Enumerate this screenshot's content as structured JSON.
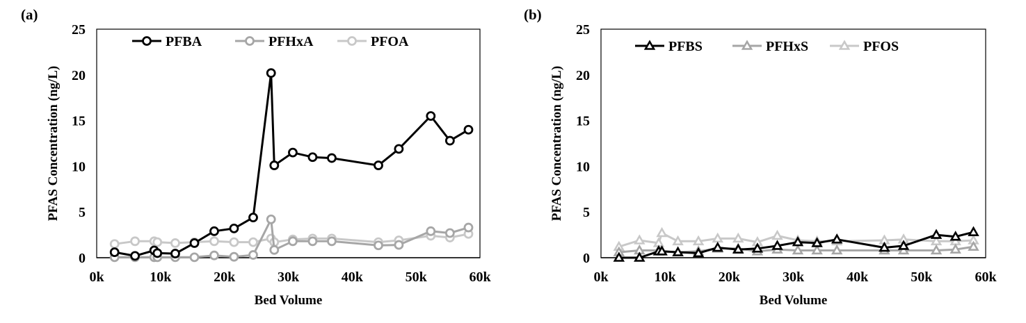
{
  "chart_data": [
    {
      "type": "line",
      "panel_label": "(a)",
      "title": "",
      "xlabel": "Bed Volume",
      "ylabel": "PFAS Concentration (ng/L)",
      "xlim": [
        0,
        60000
      ],
      "ylim": [
        0,
        25
      ],
      "xticks": [
        0,
        10000,
        20000,
        30000,
        40000,
        50000,
        60000
      ],
      "xtick_labels": [
        "0k",
        "10k",
        "20k",
        "30k",
        "40k",
        "50k",
        "60k"
      ],
      "yticks": [
        0,
        5,
        10,
        15,
        20,
        25
      ],
      "ytick_labels": [
        "0",
        "5",
        "10",
        "15",
        "20",
        "25"
      ],
      "grid": false,
      "legend_position": "top",
      "marker": "circle",
      "x": [
        2800,
        6000,
        9000,
        9500,
        12300,
        15300,
        18400,
        21500,
        24500,
        27300,
        27800,
        30700,
        33800,
        36800,
        44100,
        47300,
        52300,
        55300,
        58200
      ],
      "series": [
        {
          "name": "PFBA",
          "color": "#000000",
          "values": [
            0.6,
            0.2,
            0.8,
            0.5,
            0.45,
            1.6,
            2.9,
            3.2,
            4.4,
            20.2,
            10.1,
            11.5,
            11.0,
            10.9,
            10.1,
            11.9,
            15.5,
            12.8,
            14.0
          ]
        },
        {
          "name": "PFHxA",
          "color": "#a6a6a6",
          "values": [
            0.05,
            0.05,
            0.05,
            0.05,
            0.05,
            0.05,
            0.25,
            0.1,
            0.3,
            4.2,
            0.85,
            1.8,
            1.8,
            1.8,
            1.35,
            1.4,
            2.9,
            2.7,
            3.3
          ]
        },
        {
          "name": "PFOA",
          "color": "#c8c8c8",
          "values": [
            1.5,
            1.8,
            1.8,
            1.7,
            1.6,
            1.7,
            1.8,
            1.7,
            1.7,
            2.1,
            1.7,
            2.0,
            2.1,
            2.1,
            1.7,
            1.9,
            2.4,
            2.2,
            2.6
          ]
        }
      ]
    },
    {
      "type": "line",
      "panel_label": "(b)",
      "title": "",
      "xlabel": "Bed Volume",
      "ylabel": "PFAS Concentration (ng/L)",
      "xlim": [
        0,
        60000
      ],
      "ylim": [
        0,
        25
      ],
      "xticks": [
        0,
        10000,
        20000,
        30000,
        40000,
        50000,
        60000
      ],
      "xtick_labels": [
        "0k",
        "10k",
        "20k",
        "30k",
        "40k",
        "50k",
        "60k"
      ],
      "yticks": [
        0,
        5,
        10,
        15,
        20,
        25
      ],
      "ytick_labels": [
        "0",
        "5",
        "10",
        "15",
        "20",
        "25"
      ],
      "grid": false,
      "legend_position": "top",
      "marker": "triangle",
      "x": [
        2800,
        6000,
        9000,
        9500,
        12000,
        15200,
        18200,
        21400,
        24400,
        27500,
        30700,
        33700,
        36800,
        44200,
        47200,
        52300,
        55300,
        58100
      ],
      "series": [
        {
          "name": "PFBS",
          "color": "#000000",
          "values": [
            0.0,
            0.0,
            0.7,
            0.7,
            0.6,
            0.5,
            1.1,
            0.9,
            1.0,
            1.3,
            1.7,
            1.6,
            2.0,
            1.1,
            1.3,
            2.5,
            2.3,
            2.8
          ]
        },
        {
          "name": "PFHxS",
          "color": "#a6a6a6",
          "values": [
            0.6,
            0.8,
            0.8,
            0.7,
            0.6,
            0.7,
            1.0,
            1.0,
            0.7,
            0.9,
            0.8,
            0.8,
            0.8,
            0.8,
            0.8,
            0.8,
            0.9,
            1.2
          ]
        },
        {
          "name": "PFOS",
          "color": "#c8c8c8",
          "values": [
            1.2,
            1.9,
            1.6,
            2.7,
            1.8,
            1.8,
            2.1,
            2.1,
            1.7,
            2.4,
            1.9,
            1.8,
            1.8,
            1.9,
            2.0,
            1.8,
            1.8,
            1.9
          ]
        }
      ]
    }
  ]
}
